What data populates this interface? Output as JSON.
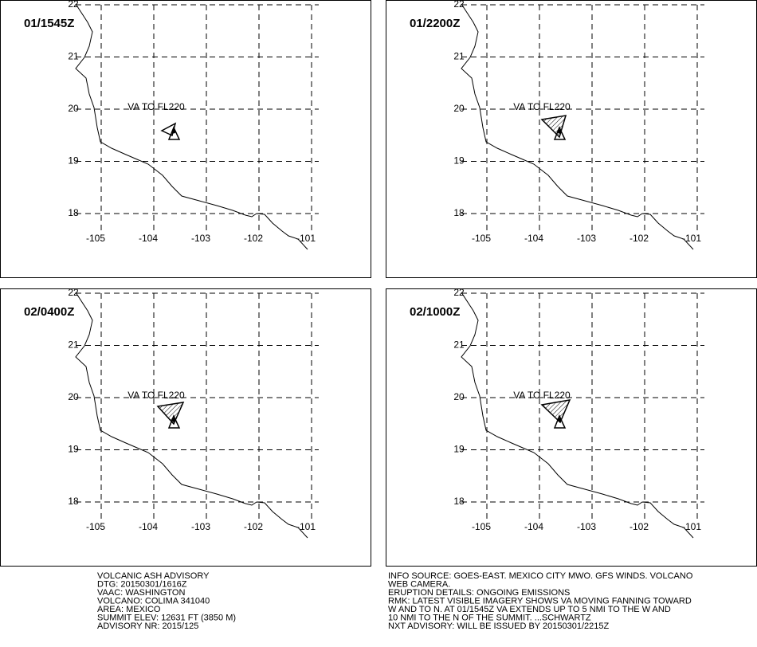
{
  "panels": [
    {
      "time": "01/1545Z",
      "annotation": "VA TO FL220"
    },
    {
      "time": "01/2200Z",
      "annotation": "VA TO FL220"
    },
    {
      "time": "02/0400Z",
      "annotation": "VA TO FL220"
    },
    {
      "time": "02/1000Z",
      "annotation": "VA TO FL220"
    }
  ],
  "lat_ticks": [
    22,
    21,
    20,
    19,
    18
  ],
  "lon_ticks": [
    -105,
    -104,
    -103,
    -102,
    -101
  ],
  "footer": {
    "left": [
      "VOLCANIC ASH ADVISORY",
      "DTG: 20150301/1616Z",
      "VAAC: WASHINGTON",
      "VOLCANO: COLIMA 341040",
      "AREA: MEXICO",
      "SUMMIT ELEV: 12631 FT (3850 M)",
      "ADVISORY NR: 2015/125"
    ],
    "right": [
      "INFO SOURCE: GOES-EAST. MEXICO CITY MWO. GFS WINDS. VOLCANO",
      "WEB CAMERA.",
      "ERUPTION DETAILS: ONGOING EMISSIONS",
      "RMK: LATEST VISIBLE IMAGERY SHOWS VA MOVING FANNING TOWARD",
      "W AND TO N. AT 01/1545Z VA EXTENDS UP TO 5 NMI TO THE W AND",
      "10 NMI TO THE N OF THE SUMMIT. ...SCHWARTZ",
      "NXT ADVISORY: WILL BE ISSUED BY 20150301/2215Z"
    ]
  }
}
